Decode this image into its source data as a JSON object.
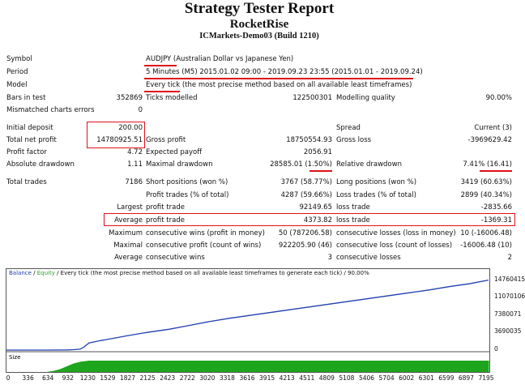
{
  "header": {
    "title": "Strategy Tester Report",
    "ea_name": "RocketRise",
    "server": "ICMarkets-Demo03 (Build 1210)"
  },
  "info": {
    "symbol_label": "Symbol",
    "symbol_value": "AUDJPY (Australian Dollar vs Japanese Yen)",
    "period_label": "Period",
    "period_value": "5 Minutes (M5) 2015.01.02 09:00 - 2019.09.23 23:55 (2015.01.01 - 2019.09.24)",
    "model_label": "Model",
    "model_value": "Every tick (the most precise method based on all available least timeframes)",
    "bars_label": "Bars in test",
    "bars_value": "352869",
    "ticks_label": "Ticks modelled",
    "ticks_value": "122500301",
    "quality_label": "Modelling quality",
    "quality_value": "90.00%",
    "mismatch_label": "Mismatched charts errors",
    "mismatch_value": "0"
  },
  "stats": {
    "initial_deposit_label": "Initial deposit",
    "initial_deposit_value": "200.00",
    "spread_label": "Spread",
    "spread_value": "Current (3)",
    "net_profit_label": "Total net profit",
    "net_profit_value": "14780925.51",
    "gross_profit_label": "Gross profit",
    "gross_profit_value": "18750554.93",
    "gross_loss_label": "Gross loss",
    "gross_loss_value": "-3969629.42",
    "profit_factor_label": "Profit factor",
    "profit_factor_value": "4.72",
    "expected_payoff_label": "Expected payoff",
    "expected_payoff_value": "2056.91",
    "abs_dd_label": "Absolute drawdown",
    "abs_dd_value": "1.11",
    "max_dd_label": "Maximal drawdown",
    "max_dd_value": "28585.01 (1.50%)",
    "rel_dd_label": "Relative drawdown",
    "rel_dd_value": "7.41% (16.41)",
    "total_trades_label": "Total trades",
    "total_trades_value": "7186",
    "short_label": "Short positions (won %)",
    "short_value": "3767 (58.77%)",
    "long_label": "Long positions (won %)",
    "long_value": "3419 (60.63%)",
    "profit_trades_label": "Profit trades (% of total)",
    "profit_trades_value": "4287 (59.66%)",
    "loss_trades_label": "Loss trades (% of total)",
    "loss_trades_value": "2899 (40.34%)",
    "largest_label": "Largest",
    "largest_profit_label": "profit trade",
    "largest_profit_value": "92149.65",
    "largest_loss_label": "loss trade",
    "largest_loss_value": "-2835.66",
    "average_label": "Average",
    "average_profit_label": "profit trade",
    "average_profit_value": "4373.82",
    "average_loss_label": "loss trade",
    "average_loss_value": "-1369.31",
    "maximum_label": "Maximum",
    "max_cons_wins_label": "consecutive wins (profit in money)",
    "max_cons_wins_value": "50 (787206.58)",
    "max_cons_losses_label": "consecutive losses (loss in money)",
    "max_cons_losses_value": "10 (-16006.48)",
    "maximal_label": "Maximal",
    "maximal_profit_label": "consecutive profit (count of wins)",
    "maximal_profit_value": "922205.90 (46)",
    "maximal_loss_label": "consecutive loss (count of losses)",
    "maximal_loss_value": "-16006.48 (10)",
    "average2_label": "Average",
    "avg_cons_wins_label": "consecutive wins",
    "avg_cons_wins_value": "3",
    "avg_cons_losses_label": "consecutive losses",
    "avg_cons_losses_value": "2"
  },
  "chart_header": {
    "balance": "Balance",
    "sep": " / ",
    "equity": "Equity",
    "rest": " / Every tick (the most precise method based on all available least timeframes to generate each tick) / 90.00%",
    "size_label": "Size"
  },
  "colors": {
    "balance_line": "#1f3fb0",
    "equity_line": "#2e9e2e",
    "size_fill": "#1ea51e",
    "highlight": "#e0101a"
  },
  "chart_data": {
    "type": "line",
    "title": "",
    "xlabel": "",
    "ylabel": "",
    "x_ticks": [
      "0",
      "336",
      "634",
      "932",
      "1230",
      "1529",
      "1827",
      "2125",
      "2423",
      "2722",
      "3020",
      "3318",
      "3616",
      "3915",
      "4213",
      "4511",
      "4809",
      "5108",
      "5406",
      "5704",
      "6002",
      "6301",
      "6599",
      "6897",
      "7195"
    ],
    "y_ticks": [
      "14760415",
      "11070106",
      "7380071",
      "3690035",
      "0"
    ],
    "xlim": [
      0,
      7200
    ],
    "ylim": [
      0,
      15400000
    ],
    "series": [
      {
        "name": "Balance",
        "x": [
          0,
          300,
          600,
          900,
          1000,
          1100,
          1150,
          1230,
          1400,
          1600,
          1827,
          2000,
          2125,
          2423,
          2722,
          3020,
          3318,
          3616,
          3915,
          4213,
          4511,
          4809,
          5108,
          5406,
          5704,
          6002,
          6301,
          6599,
          6897,
          7186
        ],
        "values": [
          200,
          2000,
          8000,
          30000,
          80000,
          200000,
          600000,
          1500000,
          2000000,
          2500000,
          3100000,
          3500000,
          3800000,
          4400000,
          5200000,
          6000000,
          6700000,
          7300000,
          7900000,
          8500000,
          9100000,
          9700000,
          10300000,
          10900000,
          11500000,
          12100000,
          12700000,
          13400000,
          14000000,
          14780925
        ]
      }
    ],
    "size_histogram": {
      "x": [
        0,
        600,
        700,
        800,
        900,
        1000,
        1100,
        1230,
        7195
      ],
      "values": [
        0,
        0,
        0.1,
        0.25,
        0.5,
        0.75,
        0.9,
        1,
        1
      ]
    }
  }
}
